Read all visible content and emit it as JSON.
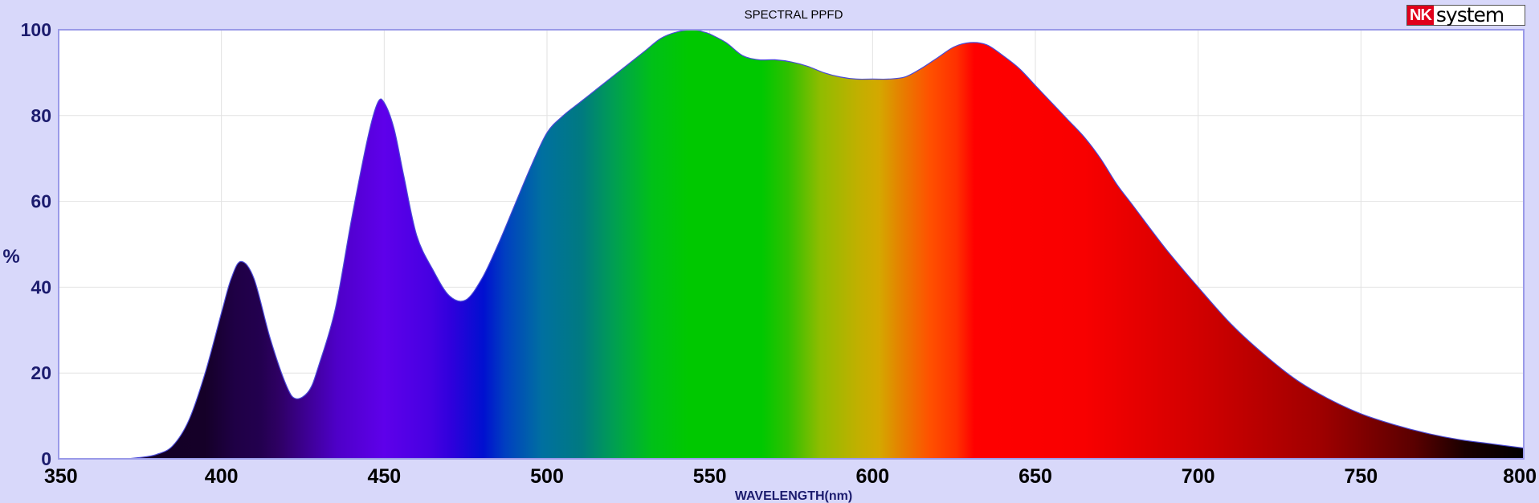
{
  "chart_data": {
    "type": "area",
    "title": "SPECTRAL PPFD",
    "xlabel": "WAVELENGTH(nm)",
    "ylabel": "%",
    "xlim": [
      350,
      800
    ],
    "ylim": [
      0,
      100
    ],
    "x_ticks": [
      350,
      400,
      450,
      500,
      550,
      600,
      650,
      700,
      750,
      800
    ],
    "y_ticks": [
      0,
      20,
      40,
      60,
      80,
      100
    ],
    "grid": true,
    "fill": "visible-spectrum gradient by wavelength",
    "x": [
      350,
      360,
      370,
      375,
      380,
      385,
      390,
      395,
      400,
      403,
      406,
      410,
      415,
      420,
      423,
      427,
      430,
      435,
      440,
      445,
      448,
      450,
      453,
      456,
      460,
      465,
      470,
      475,
      480,
      485,
      490,
      495,
      500,
      505,
      510,
      515,
      520,
      525,
      530,
      535,
      540,
      545,
      548,
      550,
      555,
      560,
      565,
      570,
      575,
      580,
      585,
      590,
      595,
      600,
      605,
      610,
      615,
      620,
      625,
      630,
      635,
      640,
      645,
      650,
      655,
      660,
      665,
      670,
      675,
      680,
      690,
      700,
      710,
      720,
      730,
      740,
      750,
      760,
      770,
      780,
      790,
      800
    ],
    "values": [
      0,
      0,
      0,
      0.3,
      1,
      3,
      9,
      20,
      34,
      42,
      46,
      42,
      28,
      17,
      14,
      16,
      22,
      35,
      56,
      75,
      83,
      83,
      77,
      66,
      52,
      44,
      38,
      37,
      42,
      50,
      59,
      68,
      76,
      80,
      83,
      86,
      89,
      92,
      95,
      98,
      99.5,
      100,
      99.5,
      99,
      97,
      94,
      93,
      93,
      92.5,
      91.5,
      90,
      89,
      88.5,
      88.5,
      88.5,
      89,
      91,
      93.5,
      96,
      97,
      96.5,
      94,
      91,
      87,
      83,
      79,
      75,
      70,
      64,
      59,
      49,
      40,
      31.5,
      24.5,
      18.5,
      14,
      10.5,
      8,
      6,
      4.5,
      3.5,
      2.5
    ]
  },
  "logo": {
    "nk": "NK",
    "system": "system"
  }
}
